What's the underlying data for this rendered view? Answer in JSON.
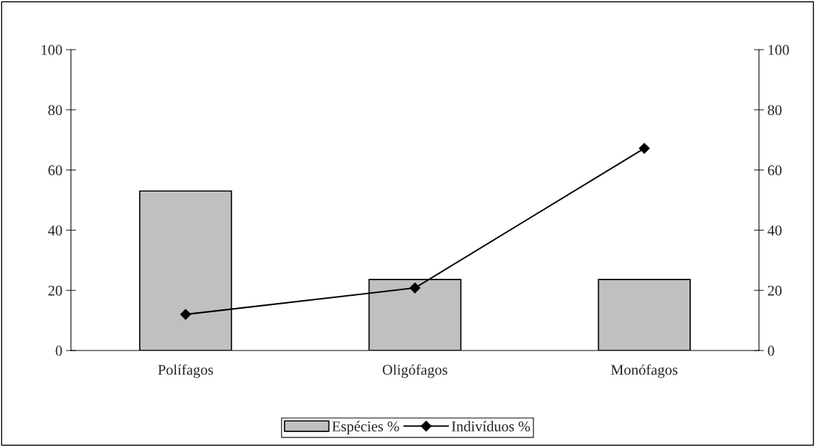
{
  "chart_data": {
    "type": "bar",
    "categories": [
      "Polífagos",
      "Oligófagos",
      "Monófagos"
    ],
    "series": [
      {
        "name": "Espécies %",
        "color": "#c0c0c0",
        "values": [
          53,
          23.6,
          23.6
        ]
      },
      {
        "name": "Indivíduos %",
        "type": "line",
        "color": "#000000",
        "marker": "diamond",
        "values": [
          12,
          20.8,
          67.2
        ]
      }
    ],
    "ylim": [
      0,
      100
    ],
    "yticks": [
      0,
      20,
      40,
      60,
      80,
      100
    ],
    "y2lim": [
      0,
      100
    ],
    "y2ticks": [
      0,
      20,
      40,
      60,
      80,
      100
    ],
    "grid": false,
    "legend": "bottom"
  }
}
